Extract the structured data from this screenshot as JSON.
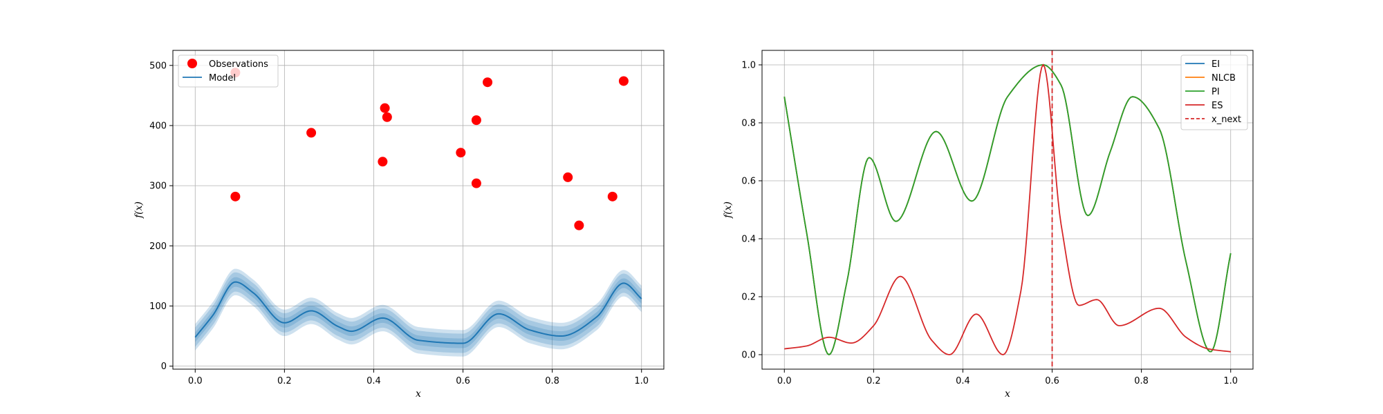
{
  "chart_data": [
    {
      "type": "scatter",
      "xlabel": "x",
      "ylabel": "f(x)",
      "xlim": [
        -0.05,
        1.05
      ],
      "ylim": [
        -5,
        525
      ],
      "xticks": [
        0.0,
        0.2,
        0.4,
        0.6,
        0.8,
        1.0
      ],
      "xtick_labels": [
        "0.0",
        "0.2",
        "0.4",
        "0.6",
        "0.8",
        "1.0"
      ],
      "yticks": [
        0,
        100,
        200,
        300,
        400,
        500
      ],
      "ytick_labels": [
        "0",
        "100",
        "200",
        "300",
        "400",
        "500"
      ],
      "grid": true,
      "legend_position": "top-left",
      "legend": [
        "Observations",
        "Model"
      ],
      "colors": {
        "observations": "#ff0000",
        "model": "#1f77b4"
      },
      "observations": {
        "name": "Observations",
        "x": [
          0.09,
          0.09,
          0.26,
          0.42,
          0.425,
          0.43,
          0.595,
          0.63,
          0.63,
          0.655,
          0.835,
          0.86,
          0.935,
          0.96
        ],
        "y": [
          282,
          488,
          388,
          340,
          429,
          414,
          355,
          409,
          304,
          472,
          314,
          234,
          282,
          474
        ]
      },
      "model": {
        "name": "Model",
        "x": [
          0.0,
          0.04,
          0.09,
          0.13,
          0.2,
          0.26,
          0.32,
          0.35,
          0.42,
          0.5,
          0.6,
          0.68,
          0.75,
          0.82,
          0.9,
          0.96,
          1.0
        ],
        "mean": [
          48,
          85,
          140,
          122,
          72,
          92,
          66,
          58,
          80,
          43,
          38,
          87,
          60,
          50,
          82,
          138,
          112
        ],
        "band_widths": [
          8,
          16,
          22
        ]
      }
    },
    {
      "type": "line",
      "xlabel": "x",
      "ylabel": "f(x)",
      "xlim": [
        -0.05,
        1.05
      ],
      "ylim": [
        -0.05,
        1.05
      ],
      "xticks": [
        0.0,
        0.2,
        0.4,
        0.6,
        0.8,
        1.0
      ],
      "xtick_labels": [
        "0.0",
        "0.2",
        "0.4",
        "0.6",
        "0.8",
        "1.0"
      ],
      "yticks": [
        0.0,
        0.2,
        0.4,
        0.6,
        0.8,
        1.0
      ],
      "ytick_labels": [
        "0.0",
        "0.2",
        "0.4",
        "0.6",
        "0.8",
        "1.0"
      ],
      "grid": true,
      "legend_position": "top-right",
      "legend": [
        "EI",
        "NLCB",
        "PI",
        "ES",
        "x_next"
      ],
      "x_next": 0.6,
      "series": [
        {
          "name": "EI",
          "color": "#1f77b4",
          "x": [
            0.0,
            0.05,
            0.1,
            0.14,
            0.19,
            0.25,
            0.34,
            0.42,
            0.5,
            0.58,
            0.62,
            0.68,
            0.73,
            0.78,
            0.84,
            0.9,
            0.955,
            1.0
          ],
          "y": [
            0.89,
            0.42,
            0.0,
            0.25,
            0.68,
            0.46,
            0.77,
            0.53,
            0.89,
            1.0,
            0.93,
            0.48,
            0.7,
            0.89,
            0.78,
            0.32,
            0.01,
            0.35
          ]
        },
        {
          "name": "NLCB",
          "color": "#ff7f0e",
          "x": [
            0.0,
            0.05,
            0.1,
            0.14,
            0.19,
            0.25,
            0.34,
            0.42,
            0.5,
            0.58,
            0.62,
            0.68,
            0.73,
            0.78,
            0.84,
            0.9,
            0.955,
            1.0
          ],
          "y": [
            0.89,
            0.42,
            0.0,
            0.25,
            0.68,
            0.46,
            0.77,
            0.53,
            0.89,
            1.0,
            0.93,
            0.48,
            0.7,
            0.89,
            0.78,
            0.32,
            0.01,
            0.35
          ]
        },
        {
          "name": "PI",
          "color": "#2ca02c",
          "x": [
            0.0,
            0.05,
            0.1,
            0.14,
            0.19,
            0.25,
            0.34,
            0.42,
            0.5,
            0.58,
            0.62,
            0.68,
            0.73,
            0.78,
            0.84,
            0.9,
            0.955,
            1.0
          ],
          "y": [
            0.89,
            0.42,
            0.0,
            0.25,
            0.68,
            0.46,
            0.77,
            0.53,
            0.89,
            1.0,
            0.93,
            0.48,
            0.7,
            0.89,
            0.78,
            0.32,
            0.01,
            0.35
          ]
        },
        {
          "name": "ES",
          "color": "#d62728",
          "x": [
            0.0,
            0.05,
            0.1,
            0.15,
            0.2,
            0.26,
            0.33,
            0.37,
            0.43,
            0.49,
            0.53,
            0.58,
            0.62,
            0.66,
            0.7,
            0.75,
            0.84,
            0.9,
            0.95,
            1.0
          ],
          "y": [
            0.02,
            0.03,
            0.06,
            0.04,
            0.1,
            0.27,
            0.05,
            0.0,
            0.14,
            0.0,
            0.22,
            1.0,
            0.45,
            0.17,
            0.19,
            0.1,
            0.16,
            0.06,
            0.02,
            0.01
          ]
        }
      ]
    }
  ]
}
